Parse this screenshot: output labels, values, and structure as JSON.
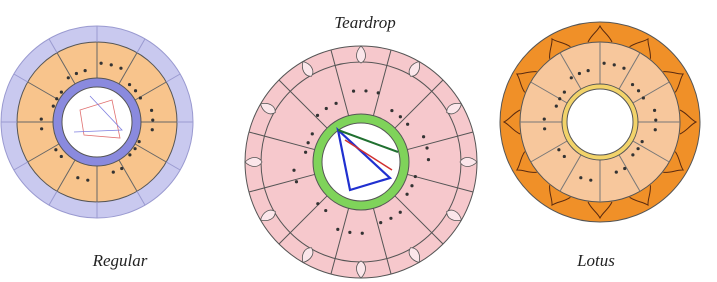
{
  "captions": {
    "left": "Regular",
    "middle": "Teardrop",
    "right": "Lotus"
  }
}
